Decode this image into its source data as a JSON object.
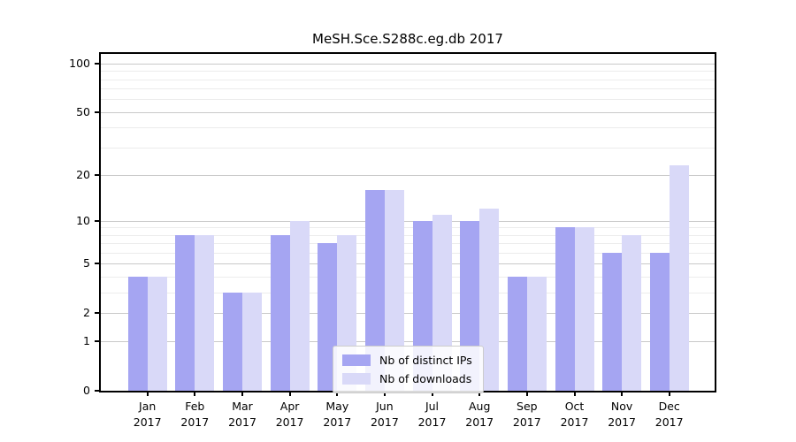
{
  "title": "MeSH.Sce.S288c.eg.db 2017",
  "chart_data": {
    "type": "bar",
    "title": "MeSH.Sce.S288c.eg.db 2017",
    "categories": [
      "Jan 2017",
      "Feb 2017",
      "Mar 2017",
      "Apr 2017",
      "May 2017",
      "Jun 2017",
      "Jul 2017",
      "Aug 2017",
      "Sep 2017",
      "Oct 2017",
      "Nov 2017",
      "Dec 2017"
    ],
    "series": [
      {
        "name": "Nb of distinct IPs",
        "color": "#a5a5f2",
        "values": [
          4,
          8,
          3,
          8,
          7,
          16,
          10,
          10,
          4,
          9,
          6,
          6
        ]
      },
      {
        "name": "Nb of downloads",
        "color": "#d9d9f8",
        "values": [
          4,
          8,
          3,
          10,
          8,
          16,
          11,
          12,
          4,
          9,
          8,
          23
        ]
      }
    ],
    "xlabel": "",
    "ylabel": "",
    "ylim": [
      0,
      100
    ],
    "yscale": "log1p",
    "y_major_ticks": [
      0,
      1,
      2,
      5,
      10,
      20,
      50,
      100
    ],
    "y_minor_ticks": [
      3,
      4,
      6,
      7,
      8,
      9,
      30,
      40,
      60,
      70,
      80,
      90
    ],
    "grid": true,
    "legend_position": "bottom-center"
  },
  "colors": {
    "background": "#ffffff",
    "axis": "#000000",
    "grid_major": "#c9c9c9",
    "grid_minor": "#ececec",
    "series_ips": "#a5a5f2",
    "series_downloads": "#d9d9f8"
  }
}
